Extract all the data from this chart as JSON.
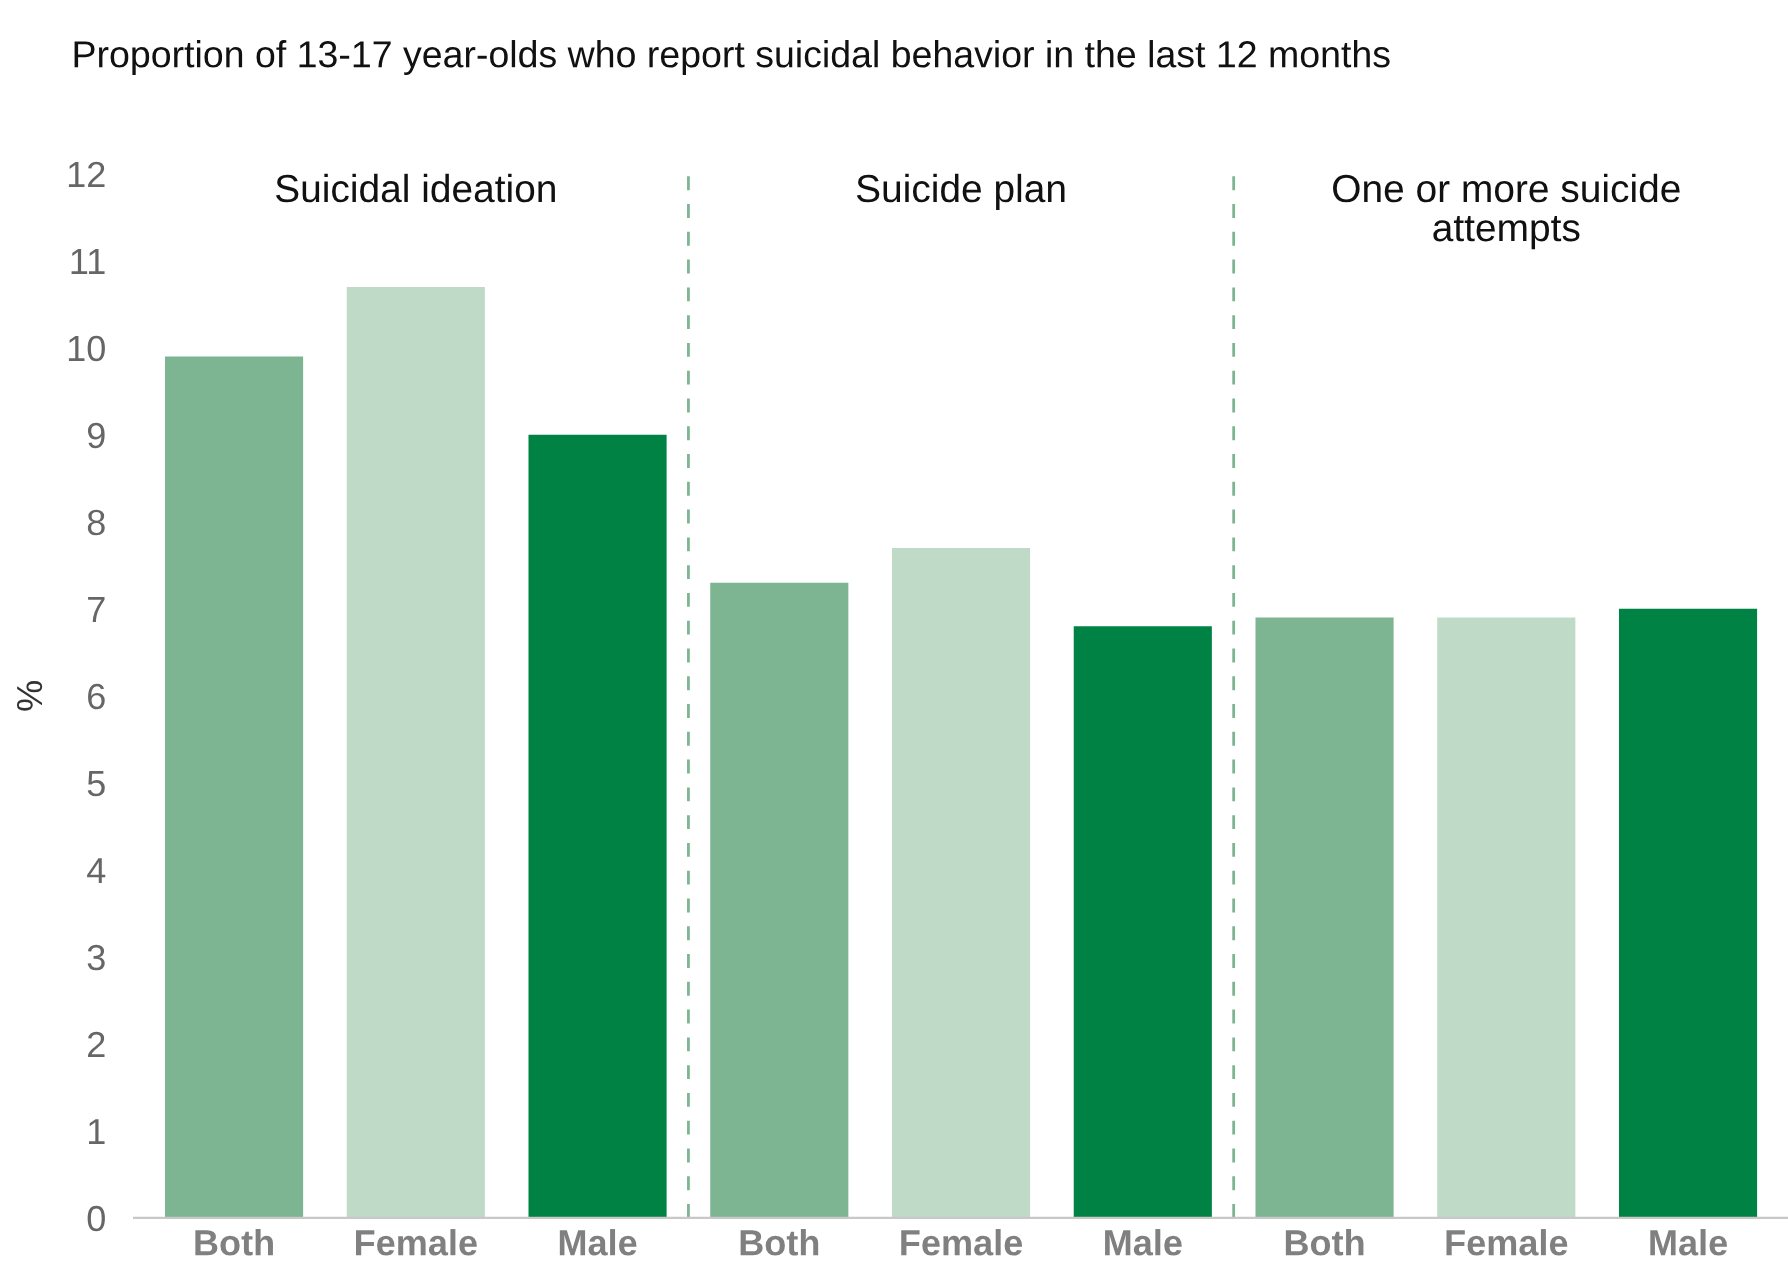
{
  "chart_data": {
    "type": "bar",
    "title": "Proportion of 13-17 year-olds who report suicidal behavior in the last 12 months",
    "ylabel": "%",
    "categories": [
      "Both",
      "Female",
      "Male",
      "Both",
      "Female",
      "Male",
      "Both",
      "Female",
      "Male"
    ],
    "values": [
      9.9,
      10.7,
      9.0,
      7.3,
      7.7,
      6.8,
      6.9,
      6.9,
      7.0
    ],
    "colors": [
      "#7db592",
      "#bfdbc8",
      "#008245",
      "#7db592",
      "#bfdbc8",
      "#008245",
      "#7db592",
      "#bfdbc8",
      "#008245"
    ],
    "annotations": [
      "Suicidal ideation",
      "Suicide plan",
      "One or more suicide\nattempts"
    ],
    "ylim": [
      0,
      12
    ],
    "yticks": [
      0,
      1,
      2,
      3,
      4,
      5,
      6,
      7,
      8,
      9,
      10,
      11,
      12
    ]
  }
}
